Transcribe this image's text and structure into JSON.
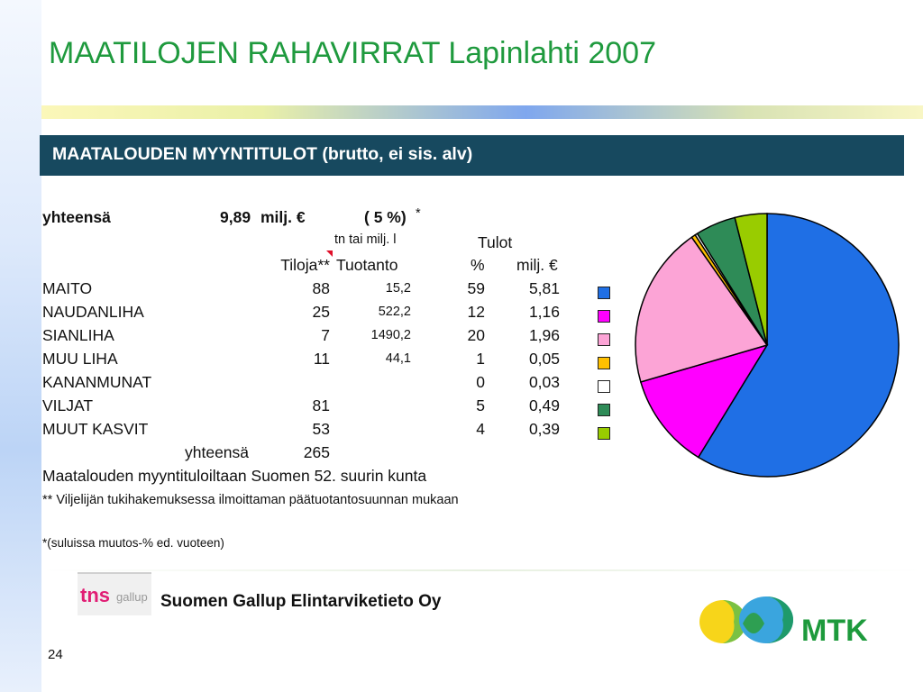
{
  "slide": {
    "title": "MAATILOJEN  RAHAVIRRAT Lapinlahti 2007",
    "banner": "MAATALOUDEN MYYNTITULOT (brutto, ei sis. alv)",
    "page_number": "24"
  },
  "summary": {
    "label": "yhteensä",
    "value": "9,89",
    "unit": "milj. €",
    "change": "( 5 %)",
    "asterisk": "*"
  },
  "headers": {
    "tn_note": "tn tai milj. l",
    "tulot": "Tulot",
    "tiloja": "Tiloja**",
    "tuotanto": "Tuotanto",
    "pct": "%",
    "milj": "milj. €"
  },
  "rows": [
    {
      "name": "MAITO",
      "tiloja": "88",
      "tuotanto": "15,2",
      "pct": "59",
      "milj": "5,81",
      "color": "#1f6fe5"
    },
    {
      "name": "NAUDANLIHA",
      "tiloja": "25",
      "tuotanto": "522,2",
      "pct": "12",
      "milj": "1,16",
      "color": "#ff00ff"
    },
    {
      "name": "SIANLIHA",
      "tiloja": "7",
      "tuotanto": "1490,2",
      "pct": "20",
      "milj": "1,96",
      "color": "#fca4d6"
    },
    {
      "name": "MUU LIHA",
      "tiloja": "11",
      "tuotanto": "44,1",
      "pct": "1",
      "milj": "0,05",
      "color": "#ffc000"
    },
    {
      "name": "KANANMUNAT",
      "tiloja": "",
      "tuotanto": "",
      "pct": "0",
      "milj": "0,03",
      "color": "#ffffff"
    },
    {
      "name": "VILJAT",
      "tiloja": "81",
      "tuotanto": "",
      "pct": "5",
      "milj": "0,49",
      "color": "#2e8b57"
    },
    {
      "name": "MUUT KASVIT",
      "tiloja": "53",
      "tuotanto": "",
      "pct": "4",
      "milj": "0,39",
      "color": "#99cc00"
    }
  ],
  "totals": {
    "label": "yhteensä",
    "tiloja": "265"
  },
  "notes": {
    "rank": "Maatalouden myyntituloiltaan Suomen 52. suurin kunta",
    "footnote1": "** Viljelijän tukihakemuksessa ilmoittaman päätuotantosuunnan mukaan",
    "footnote2": "*(suluissa muutos-% ed. vuoteen)"
  },
  "footer": {
    "tns_word": "tns",
    "tns_sub": "gallup",
    "company": "Suomen Gallup Elintarviketieto Oy",
    "mtk": "MTK"
  },
  "chart_data": {
    "type": "pie",
    "categories": [
      "MAITO",
      "NAUDANLIHA",
      "SIANLIHA",
      "MUU LIHA",
      "KANANMUNAT",
      "VILJAT",
      "MUUT KASVIT"
    ],
    "values": [
      5.81,
      1.16,
      1.96,
      0.05,
      0.03,
      0.49,
      0.39
    ],
    "colors": [
      "#1f6fe5",
      "#ff00ff",
      "#fca4d6",
      "#ffc000",
      "#ffffff",
      "#2e8b57",
      "#99cc00"
    ],
    "stroke": "#000000"
  }
}
